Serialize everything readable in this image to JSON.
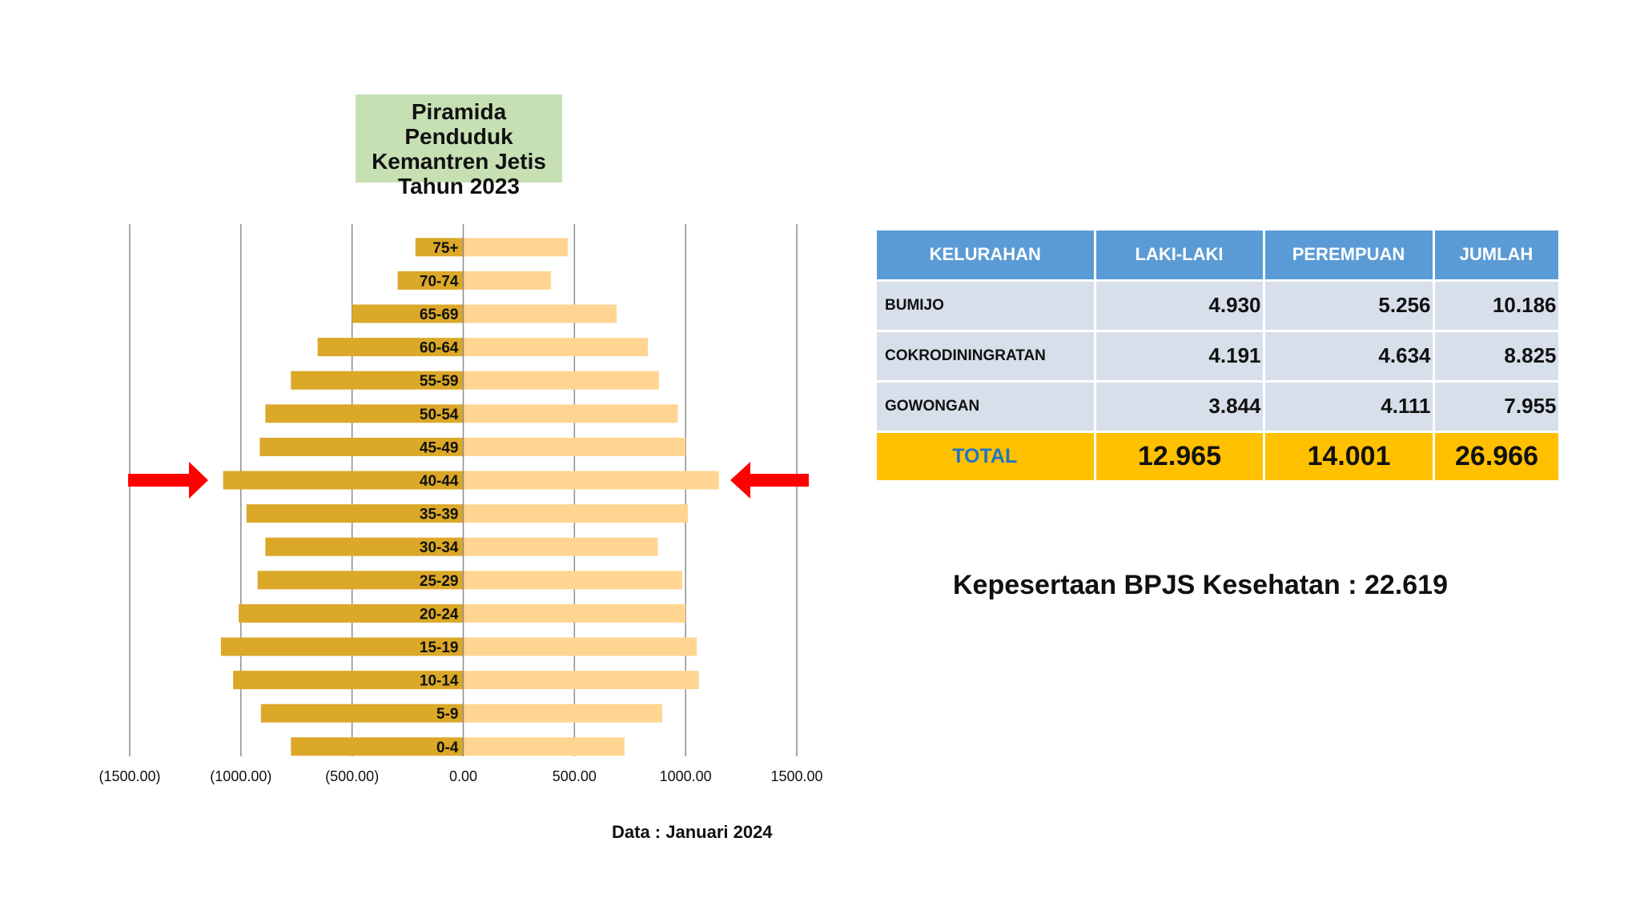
{
  "chart_data": {
    "type": "bar",
    "orientation": "horizontal",
    "subtype": "population-pyramid",
    "title_lines": [
      "Piramida Penduduk",
      "Kemantren Jetis",
      "Tahun 2023"
    ],
    "categories": [
      "75+",
      "70-74",
      "65-69",
      "60-64",
      "55-59",
      "50-54",
      "45-49",
      "40-44",
      "35-39",
      "30-34",
      "25-29",
      "20-24",
      "15-19",
      "10-14",
      "5-9",
      "0-4"
    ],
    "series": [
      {
        "color": "#dba828",
        "values": [
          -215,
          -295,
          -500,
          -655,
          -775,
          -890,
          -915,
          -1080,
          -975,
          -890,
          -925,
          -1010,
          -1090,
          -1035,
          -910,
          -775
        ]
      },
      {
        "color": "#ffd591",
        "values": [
          470,
          395,
          690,
          830,
          880,
          965,
          1000,
          1150,
          1010,
          875,
          985,
          1000,
          1050,
          1060,
          895,
          725
        ]
      }
    ],
    "xlim": [
      -1500,
      1500
    ],
    "xticks": [
      -1500,
      -1000,
      -500,
      0,
      500,
      1000,
      1500
    ],
    "xtick_labels": [
      "(1500.00)",
      "(1000.00)",
      "(500.00)",
      "0.00",
      "500.00",
      "1000.00",
      "1500.00"
    ],
    "highlighted_category": "40-44",
    "grid": "vertical",
    "legend": "none",
    "note": "Data : Januari 2024"
  },
  "table": {
    "headers": [
      "KELURAHAN",
      "LAKI-LAKI",
      "PEREMPUAN",
      "JUMLAH"
    ],
    "rows": [
      [
        "BUMIJO",
        "4.930",
        "5.256",
        "10.186"
      ],
      [
        "COKRODININGRATAN",
        "4.191",
        "4.634",
        "8.825"
      ],
      [
        "GOWONGAN",
        "3.844",
        "4.111",
        "7.955"
      ]
    ],
    "total": [
      "TOTAL",
      "12.965",
      "14.001",
      "26.966"
    ]
  },
  "bpjs_text": "Kepesertaan BPJS Kesehatan : 22.619",
  "colors": {
    "male_bar": "#dba828",
    "female_bar": "#ffd591",
    "title_box": "#c6e0b4",
    "header_bg": "#5b9bd5",
    "row_bg": "#d6dfea",
    "total_bg": "#ffc000",
    "total_label": "#1f74c6",
    "arrow": "#ff0000"
  },
  "icons": {
    "highlight_arrow": "red-arrow-icon"
  }
}
